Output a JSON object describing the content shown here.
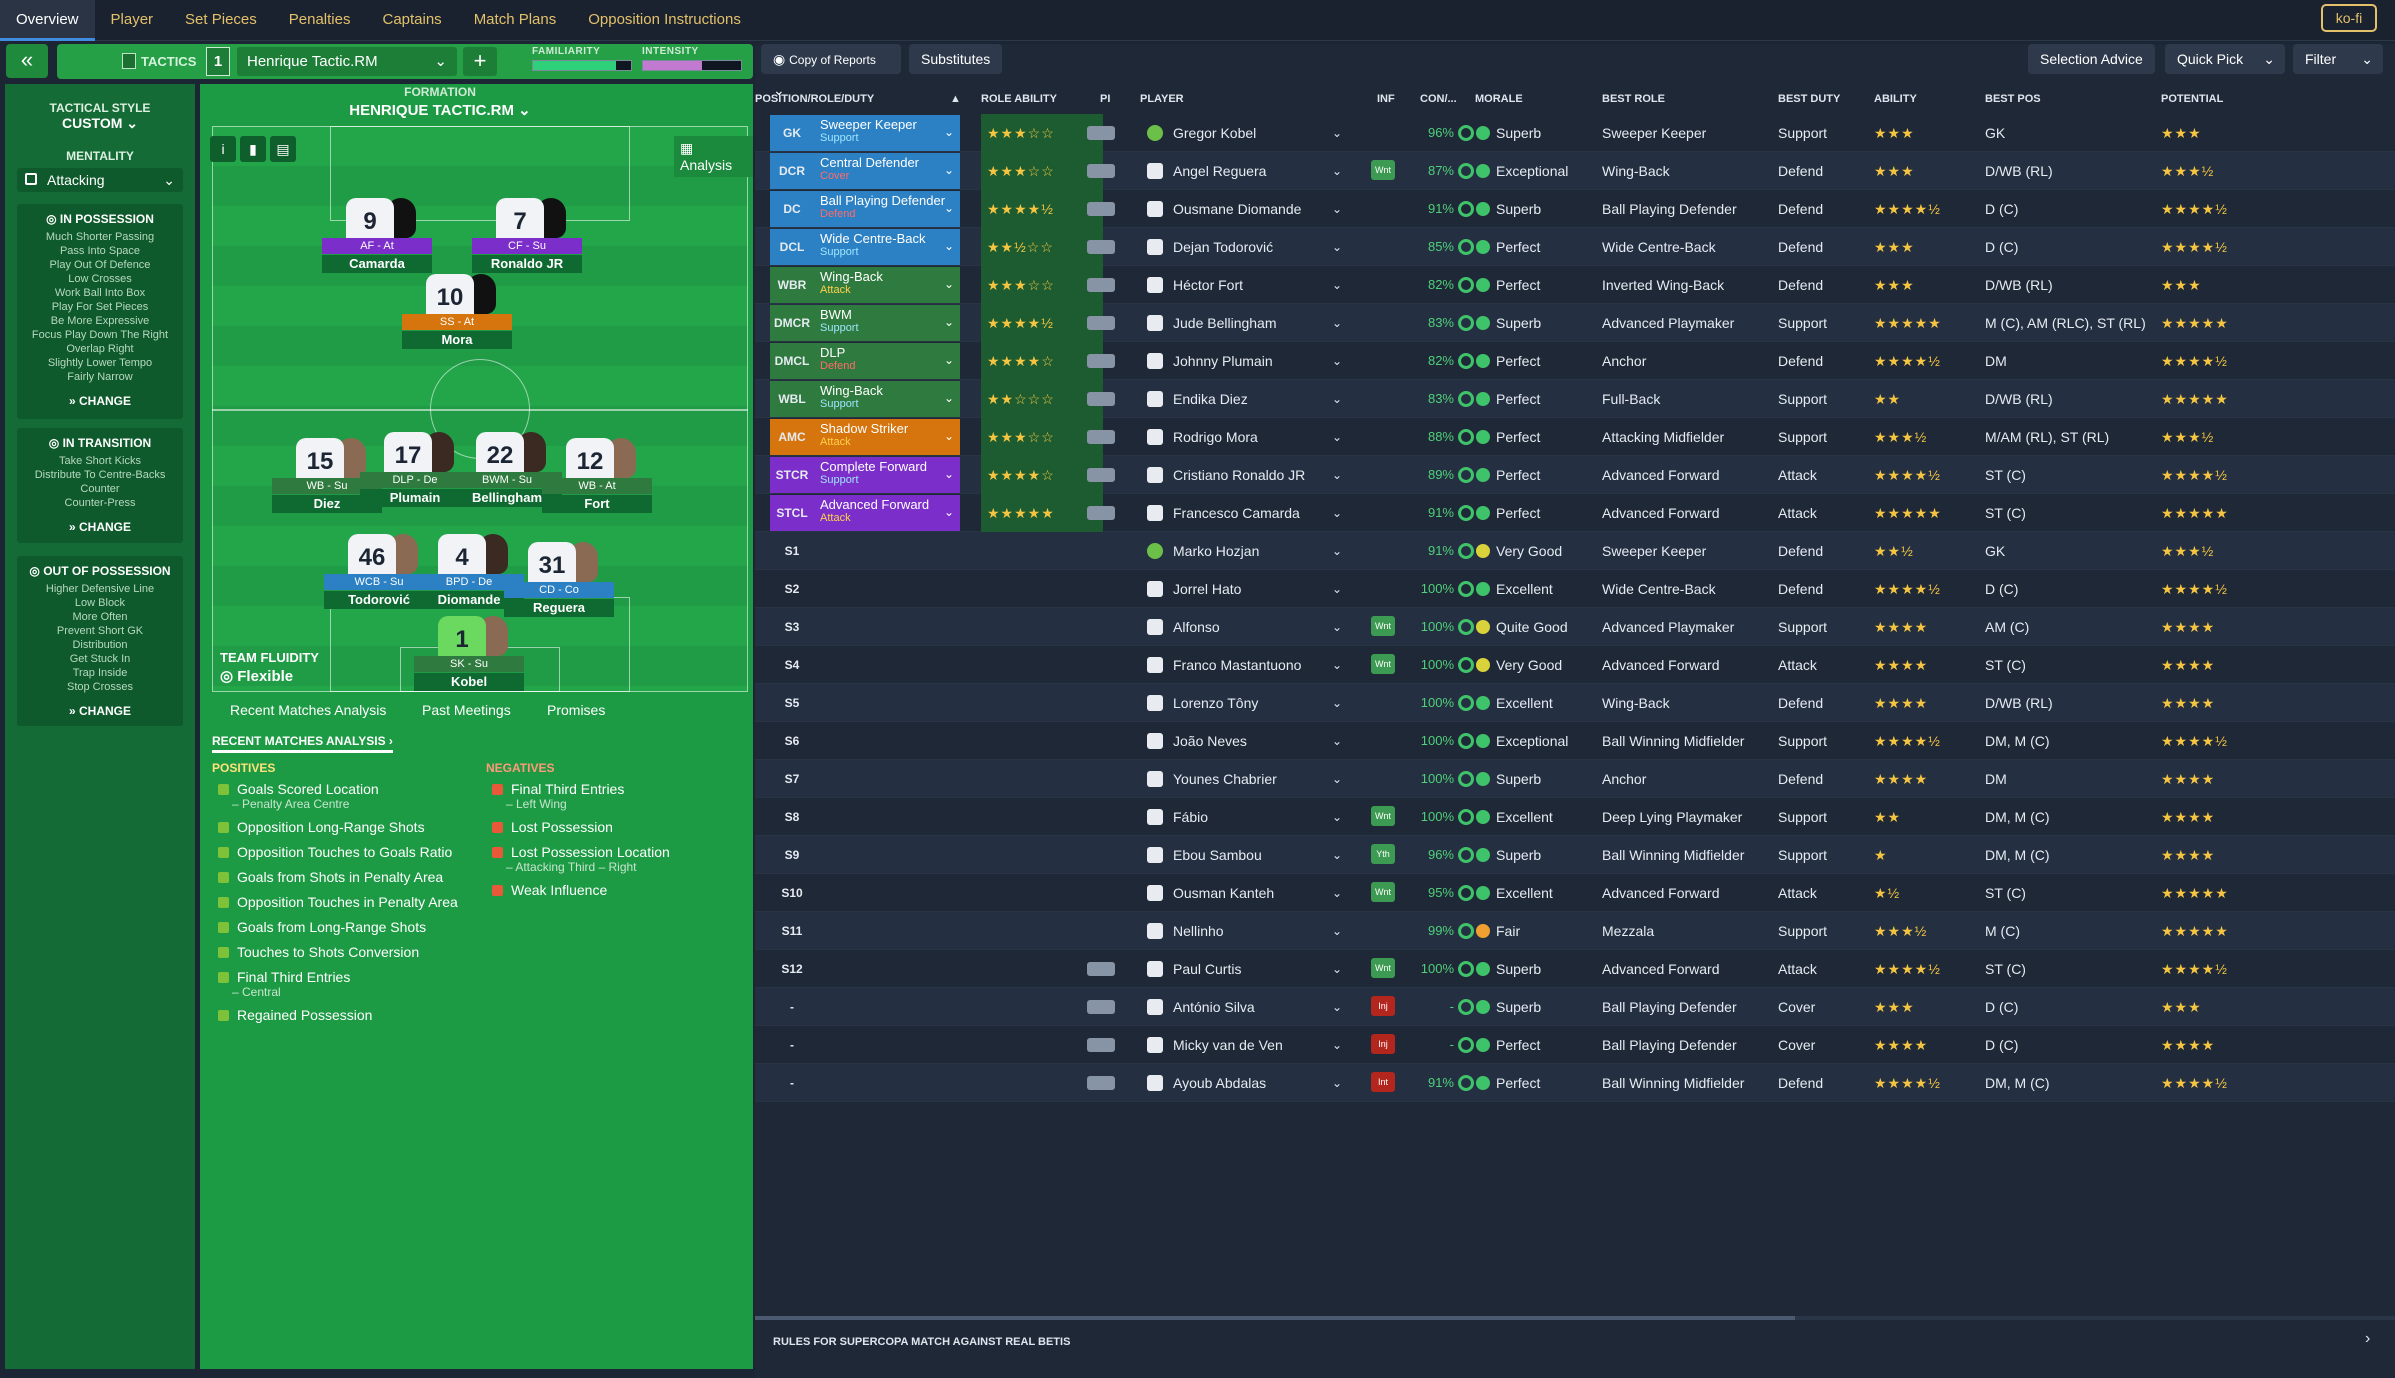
{
  "topnav": {
    "tabs": [
      "Overview",
      "Player",
      "Set Pieces",
      "Penalties",
      "Captains",
      "Match Plans",
      "Opposition Instructions"
    ],
    "kofi": "ko-fi"
  },
  "tactics": {
    "label": "TACTICS",
    "number": "1",
    "name": "Henrique Tactic.RM",
    "add": "+",
    "collapse": "«",
    "familiarity_label": "FAMILIARITY",
    "intensity_label": "INTENSITY",
    "familiarity": 0.85,
    "intensity": 0.6
  },
  "side": {
    "style_head": "TACTICAL STYLE",
    "style_val": "CUSTOM",
    "mentality_head": "MENTALITY",
    "mentality_val": "Attacking",
    "inpos": {
      "title": "IN POSSESSION",
      "items": [
        "Much Shorter Passing",
        "Pass Into Space",
        "Play Out Of Defence",
        "Low Crosses",
        "Work Ball Into Box",
        "Play For Set Pieces",
        "Be More Expressive",
        "Focus Play Down The Right",
        "Overlap Right",
        "Slightly Lower Tempo",
        "Fairly Narrow"
      ]
    },
    "intrans": {
      "title": "IN TRANSITION",
      "items": [
        "Take Short Kicks",
        "Distribute To Centre-Backs",
        "Counter",
        "Counter-Press"
      ]
    },
    "outpos": {
      "title": "OUT OF POSSESSION",
      "items": [
        "Higher Defensive Line",
        "Low Block",
        "More Often",
        "Prevent Short GK",
        "Distribution",
        "Get Stuck In",
        "Trap Inside",
        "Stop Crosses"
      ]
    },
    "change": "CHANGE"
  },
  "formation": {
    "label": "FORMATION",
    "name": "HENRIQUE TACTIC.RM",
    "analysis": "Analysis",
    "fluidity_label": "TEAM FLUIDITY",
    "fluidity": "Flexible"
  },
  "pitch_players": [
    {
      "num": "9",
      "role": "AF - At",
      "name": "Camarda",
      "color": "#7b2ec9"
    },
    {
      "num": "7",
      "role": "CF - Su",
      "name": "Ronaldo JR",
      "color": "#7b2ec9"
    },
    {
      "num": "10",
      "role": "SS - At",
      "name": "Mora",
      "color": "#d6740d"
    },
    {
      "num": "15",
      "role": "WB - Su",
      "name": "Diez",
      "color": "#2f7a3e"
    },
    {
      "num": "17",
      "role": "DLP - De",
      "name": "Plumain",
      "color": "#2f7a3e"
    },
    {
      "num": "22",
      "role": "BWM - Su",
      "name": "Bellingham",
      "color": "#2f7a3e"
    },
    {
      "num": "12",
      "role": "WB - At",
      "name": "Fort",
      "color": "#2f7a3e"
    },
    {
      "num": "46",
      "role": "WCB - Su",
      "name": "Todorović",
      "color": "#2c80c4"
    },
    {
      "num": "4",
      "role": "BPD - De",
      "name": "Diomande",
      "color": "#2c80c4"
    },
    {
      "num": "31",
      "role": "CD - Co",
      "name": "Reguera",
      "color": "#2c80c4"
    },
    {
      "num": "1",
      "role": "SK - Su",
      "name": "Kobel",
      "color": "#2f7a3e"
    }
  ],
  "analysis": {
    "tabs": [
      "Recent Matches Analysis",
      "Past Meetings",
      "Promises"
    ],
    "sub": "RECENT MATCHES ANALYSIS",
    "pos_head": "POSITIVES",
    "neg_head": "NEGATIVES",
    "positives": [
      {
        "t": "Goals Scored Location",
        "s": "– Penalty Area Centre"
      },
      {
        "t": "Opposition Long-Range Shots",
        "s": ""
      },
      {
        "t": "Opposition Touches to Goals Ratio",
        "s": ""
      },
      {
        "t": "Goals from Shots in Penalty Area",
        "s": ""
      },
      {
        "t": "Opposition Touches in Penalty Area",
        "s": ""
      },
      {
        "t": "Goals from Long-Range Shots",
        "s": ""
      },
      {
        "t": "Touches to Shots Conversion",
        "s": ""
      },
      {
        "t": "Final Third Entries",
        "s": "– Central"
      },
      {
        "t": "Regained Possession",
        "s": ""
      }
    ],
    "negatives": [
      {
        "t": "Final Third Entries",
        "s": "– Left Wing"
      },
      {
        "t": "Lost Possession",
        "s": ""
      },
      {
        "t": "Lost Possession Location",
        "s": "– Attacking Third – Right"
      },
      {
        "t": "Weak Influence",
        "s": ""
      }
    ]
  },
  "toolbar": {
    "report": "Copy of Reports",
    "subs": "Substitutes",
    "advice": "Selection Advice",
    "quickpick": "Quick Pick",
    "filter": "Filter"
  },
  "columns": [
    "POSITION/ROLE/DUTY",
    "ROLE ABILITY",
    "PI",
    "PLAYER",
    "INF",
    "CON/...",
    "MORALE",
    "BEST ROLE",
    "BEST DUTY",
    "ABILITY",
    "BEST POS",
    "POTENTIAL"
  ],
  "rows": [
    {
      "pos": "GK",
      "role": "Sweeper Keeper",
      "duty": "Support",
      "rcol": "#2c80c4",
      "ra": 3,
      "player": "Gregor Kobel",
      "gk": true,
      "inf": "",
      "con": "96%",
      "morale": "Superb",
      "brole": "Sweeper Keeper",
      "bduty": "Support",
      "ab": "★★★",
      "bpos": "GK",
      "pot": "★★★"
    },
    {
      "pos": "DCR",
      "role": "Central Defender",
      "duty": "Cover",
      "rcol": "#2c80c4",
      "ra": 3,
      "player": "Angel Reguera",
      "inf": "Wnt",
      "con": "87%",
      "morale": "Exceptional",
      "brole": "Wing-Back",
      "bduty": "Defend",
      "ab": "★★★",
      "bpos": "D/WB (RL)",
      "pot": "★★★½"
    },
    {
      "pos": "DC",
      "role": "Ball Playing Defender",
      "duty": "Defend",
      "rcol": "#2c80c4",
      "ra": 4.5,
      "player": "Ousmane Diomande",
      "inf": "",
      "con": "91%",
      "morale": "Superb",
      "brole": "Ball Playing Defender",
      "bduty": "Defend",
      "ab": "★★★★½",
      "bpos": "D (C)",
      "pot": "★★★★½"
    },
    {
      "pos": "DCL",
      "role": "Wide Centre-Back",
      "duty": "Support",
      "rcol": "#2c80c4",
      "ra": 2.5,
      "player": "Dejan Todorović",
      "inf": "",
      "con": "85%",
      "morale": "Perfect",
      "brole": "Wide Centre-Back",
      "bduty": "Defend",
      "ab": "★★★",
      "bpos": "D (C)",
      "pot": "★★★★½"
    },
    {
      "pos": "WBR",
      "role": "Wing-Back",
      "duty": "Attack",
      "rcol": "#2f7a3e",
      "ra": 3,
      "player": "Héctor Fort",
      "inf": "",
      "con": "82%",
      "morale": "Perfect",
      "brole": "Inverted Wing-Back",
      "bduty": "Defend",
      "ab": "★★★",
      "bpos": "D/WB (RL)",
      "pot": "★★★"
    },
    {
      "pos": "DMCR",
      "role": "BWM",
      "duty": "Support",
      "rcol": "#2f7a3e",
      "ra": 4.5,
      "player": "Jude Bellingham",
      "inf": "",
      "con": "83%",
      "morale": "Superb",
      "brole": "Advanced Playmaker",
      "bduty": "Support",
      "ab": "★★★★★",
      "bpos": "M (C), AM (RLC), ST (RL)",
      "pot": "★★★★★"
    },
    {
      "pos": "DMCL",
      "role": "DLP",
      "duty": "Defend",
      "rcol": "#2f7a3e",
      "ra": 4,
      "player": "Johnny Plumain",
      "inf": "",
      "con": "82%",
      "morale": "Perfect",
      "brole": "Anchor",
      "bduty": "Defend",
      "ab": "★★★★½",
      "bpos": "DM",
      "pot": "★★★★½"
    },
    {
      "pos": "WBL",
      "role": "Wing-Back",
      "duty": "Support",
      "rcol": "#2f7a3e",
      "ra": 2,
      "player": "Endika Diez",
      "inf": "",
      "con": "83%",
      "morale": "Perfect",
      "brole": "Full-Back",
      "bduty": "Support",
      "ab": "★★",
      "bpos": "D/WB (RL)",
      "pot": "★★★★★"
    },
    {
      "pos": "AMC",
      "role": "Shadow Striker",
      "duty": "Attack",
      "rcol": "#d6740d",
      "ra": 3,
      "player": "Rodrigo Mora",
      "inf": "",
      "con": "88%",
      "morale": "Perfect",
      "brole": "Attacking Midfielder",
      "bduty": "Support",
      "ab": "★★★½",
      "bpos": "M/AM (RL), ST (RL)",
      "pot": "★★★½"
    },
    {
      "pos": "STCR",
      "role": "Complete Forward",
      "duty": "Support",
      "rcol": "#7b2ec9",
      "ra": 4,
      "player": "Cristiano Ronaldo JR",
      "inf": "",
      "con": "89%",
      "morale": "Perfect",
      "brole": "Advanced Forward",
      "bduty": "Attack",
      "ab": "★★★★½",
      "bpos": "ST (C)",
      "pot": "★★★★½"
    },
    {
      "pos": "STCL",
      "role": "Advanced Forward",
      "duty": "Attack",
      "rcol": "#7b2ec9",
      "ra": 5,
      "player": "Francesco Camarda",
      "inf": "",
      "con": "91%",
      "morale": "Perfect",
      "brole": "Advanced Forward",
      "bduty": "Attack",
      "ab": "★★★★★",
      "bpos": "ST (C)",
      "pot": "★★★★★"
    },
    {
      "pos": "S1",
      "role": "",
      "duty": "",
      "rcol": "",
      "ra": 0,
      "player": "Marko Hozjan",
      "gk": true,
      "inf": "",
      "con": "91%",
      "morale": "Very Good",
      "brole": "Sweeper Keeper",
      "bduty": "Defend",
      "ab": "★★½",
      "bpos": "GK",
      "pot": "★★★½"
    },
    {
      "pos": "S2",
      "role": "",
      "duty": "",
      "rcol": "",
      "ra": 0,
      "player": "Jorrel Hato",
      "inf": "",
      "con": "100%",
      "morale": "Excellent",
      "brole": "Wide Centre-Back",
      "bduty": "Defend",
      "ab": "★★★★½",
      "bpos": "D (C)",
      "pot": "★★★★½"
    },
    {
      "pos": "S3",
      "role": "",
      "duty": "",
      "rcol": "",
      "ra": 0,
      "player": "Alfonso",
      "inf": "Wnt",
      "con": "100%",
      "morale": "Quite Good",
      "brole": "Advanced Playmaker",
      "bduty": "Support",
      "ab": "★★★★",
      "bpos": "AM (C)",
      "pot": "★★★★"
    },
    {
      "pos": "S4",
      "role": "",
      "duty": "",
      "rcol": "",
      "ra": 0,
      "player": "Franco Mastantuono",
      "inf": "Wnt",
      "con": "100%",
      "morale": "Very Good",
      "brole": "Advanced Forward",
      "bduty": "Attack",
      "ab": "★★★★",
      "bpos": "ST (C)",
      "pot": "★★★★"
    },
    {
      "pos": "S5",
      "role": "",
      "duty": "",
      "rcol": "",
      "ra": 0,
      "player": "Lorenzo Tôny",
      "inf": "",
      "con": "100%",
      "morale": "Excellent",
      "brole": "Wing-Back",
      "bduty": "Defend",
      "ab": "★★★★",
      "bpos": "D/WB (RL)",
      "pot": "★★★★"
    },
    {
      "pos": "S6",
      "role": "",
      "duty": "",
      "rcol": "",
      "ra": 0,
      "player": "João Neves",
      "inf": "",
      "con": "100%",
      "morale": "Exceptional",
      "brole": "Ball Winning Midfielder",
      "bduty": "Support",
      "ab": "★★★★½",
      "bpos": "DM, M (C)",
      "pot": "★★★★½"
    },
    {
      "pos": "S7",
      "role": "",
      "duty": "",
      "rcol": "",
      "ra": 0,
      "player": "Younes Chabrier",
      "inf": "",
      "con": "100%",
      "morale": "Superb",
      "brole": "Anchor",
      "bduty": "Defend",
      "ab": "★★★★",
      "bpos": "DM",
      "pot": "★★★★"
    },
    {
      "pos": "S8",
      "role": "",
      "duty": "",
      "rcol": "",
      "ra": 0,
      "player": "Fábio",
      "inf": "Wnt",
      "con": "100%",
      "morale": "Excellent",
      "brole": "Deep Lying Playmaker",
      "bduty": "Support",
      "ab": "★★",
      "bpos": "DM, M (C)",
      "pot": "★★★★"
    },
    {
      "pos": "S9",
      "role": "",
      "duty": "",
      "rcol": "",
      "ra": 0,
      "player": "Ebou Sambou",
      "inf": "Yth",
      "con": "96%",
      "morale": "Superb",
      "brole": "Ball Winning Midfielder",
      "bduty": "Support",
      "ab": "★",
      "bpos": "DM, M (C)",
      "pot": "★★★★"
    },
    {
      "pos": "S10",
      "role": "",
      "duty": "",
      "rcol": "",
      "ra": 0,
      "player": "Ousman Kanteh",
      "inf": "Wnt",
      "con": "95%",
      "morale": "Excellent",
      "brole": "Advanced Forward",
      "bduty": "Attack",
      "ab": "★½",
      "bpos": "ST (C)",
      "pot": "★★★★★"
    },
    {
      "pos": "S11",
      "role": "",
      "duty": "",
      "rcol": "",
      "ra": 0,
      "player": "Nellinho",
      "inf": "",
      "con": "99%",
      "morale": "Fair",
      "brole": "Mezzala",
      "bduty": "Support",
      "ab": "★★★½",
      "bpos": "M (C)",
      "pot": "★★★★★"
    },
    {
      "pos": "S12",
      "role": "",
      "duty": "",
      "rcol": "",
      "ra": 0,
      "player": "Paul Curtis",
      "inf": "Wnt",
      "con": "100%",
      "morale": "Superb",
      "brole": "Advanced Forward",
      "bduty": "Attack",
      "ab": "★★★★½",
      "bpos": "ST (C)",
      "pot": "★★★★½"
    },
    {
      "pos": "-",
      "role": "",
      "duty": "",
      "rcol": "",
      "ra": 0,
      "player": "António Silva",
      "inf": "Inj",
      "con": "-",
      "morale": "Superb",
      "brole": "Ball Playing Defender",
      "bduty": "Cover",
      "ab": "★★★",
      "bpos": "D (C)",
      "pot": "★★★"
    },
    {
      "pos": "-",
      "role": "",
      "duty": "",
      "rcol": "",
      "ra": 0,
      "player": "Micky van de Ven",
      "inf": "Inj",
      "con": "-",
      "morale": "Perfect",
      "brole": "Ball Playing Defender",
      "bduty": "Cover",
      "ab": "★★★★",
      "bpos": "D (C)",
      "pot": "★★★★"
    },
    {
      "pos": "-",
      "role": "",
      "duty": "",
      "rcol": "",
      "ra": 0,
      "player": "Ayoub Abdalas",
      "inf": "Int",
      "con": "91%",
      "morale": "Perfect",
      "brole": "Ball Winning Midfielder",
      "bduty": "Defend",
      "ab": "★★★★½",
      "bpos": "DM, M (C)",
      "pot": "★★★★½"
    }
  ],
  "footer": "RULES FOR SUPERCOPA MATCH AGAINST REAL BETIS"
}
